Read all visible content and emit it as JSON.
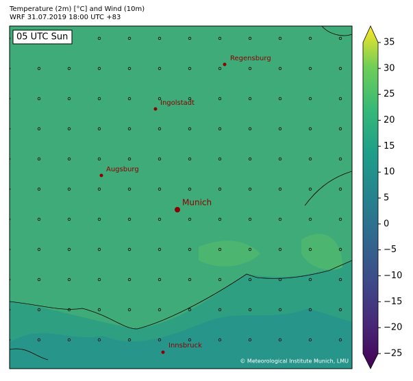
{
  "header": {
    "title": "Temperature (2m) [°C] and Wind (10m)",
    "subtitle": "WRF 31.07.2019 18:00 UTC +83"
  },
  "map": {
    "time_label": "05 UTC Sun",
    "cities": [
      {
        "name": "Regensburg"
      },
      {
        "name": "Ingolstadt"
      },
      {
        "name": "Augsburg"
      },
      {
        "name": "Munich"
      },
      {
        "name": "Innsbruck"
      }
    ],
    "copyright": "© Meteorological Institute Munich, LMU"
  },
  "colorbar": {
    "lim": [
      -25,
      35
    ],
    "ticks": [
      {
        "value": -25,
        "label": "−25"
      },
      {
        "value": -20,
        "label": "−20"
      },
      {
        "value": -15,
        "label": "−15"
      },
      {
        "value": -10,
        "label": "−10"
      },
      {
        "value": -5,
        "label": "−5"
      },
      0,
      5,
      10,
      15,
      20,
      25,
      30,
      35
    ]
  }
}
